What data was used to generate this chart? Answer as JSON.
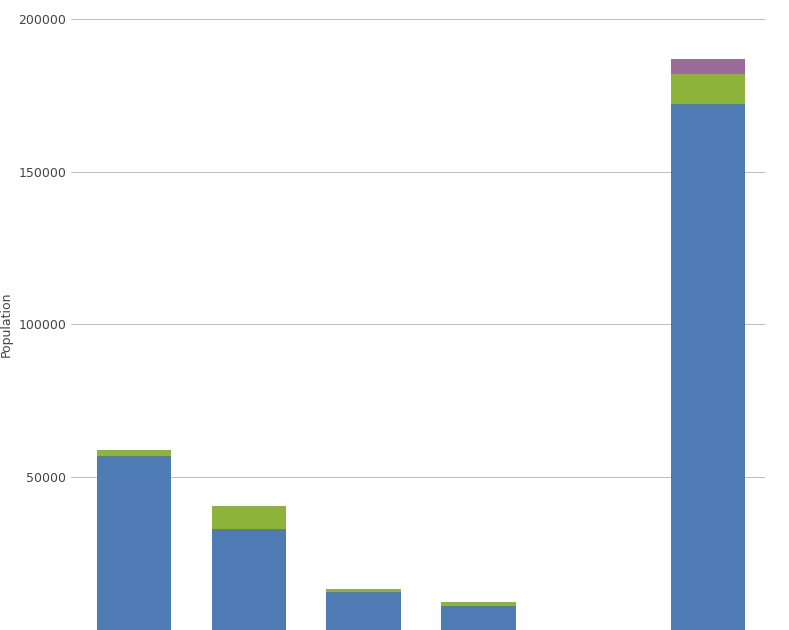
{
  "blue_values": [
    57000,
    33000,
    12500,
    8000,
    172000
  ],
  "green_values": [
    2000,
    7500,
    800,
    1200,
    10000
  ],
  "purple_values": [
    0,
    0,
    0,
    0,
    5000
  ],
  "bar_color_blue": "#4F7BB5",
  "bar_color_green": "#8DB33B",
  "bar_color_purple": "#9B6B9B",
  "ylabel": "Population",
  "ylim": [
    0,
    200000
  ],
  "yticks": [
    50000,
    100000,
    150000,
    200000
  ],
  "background_color": "#ffffff",
  "grid_color": "#bbbbbb",
  "bar_width": 0.65,
  "n_bars": 5
}
